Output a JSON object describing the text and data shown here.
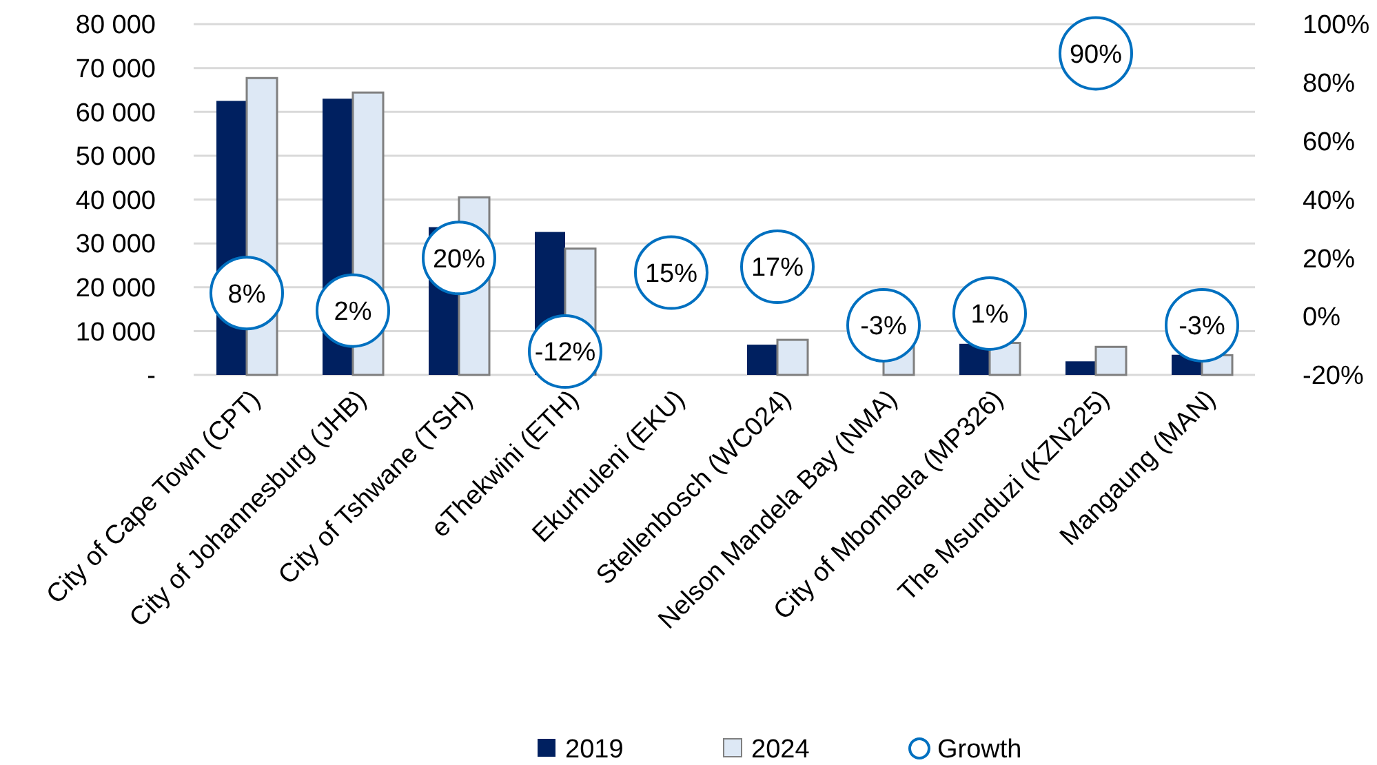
{
  "chart_data": {
    "type": "bar",
    "categories": [
      "City of Cape Town (CPT)",
      "City of Johannesburg (JHB)",
      "City of Tshwane (TSH)",
      "eThekwini (ETH)",
      "Ekurhuleni (EKU)",
      "Stellenbosch (WC024)",
      "Nelson Mandela Bay (NMA)",
      "City of Mbombela (MP326)",
      "The Msunduzi (KZN225)",
      "Mangaung (MAN)"
    ],
    "series": [
      {
        "name": "2019",
        "color": "#002060",
        "values": [
          62500,
          63000,
          33700,
          32600,
          null,
          6900,
          null,
          7100,
          3100,
          4600
        ]
      },
      {
        "name": "2024",
        "color": "#dde8f5",
        "values": [
          67700,
          64400,
          40500,
          28800,
          null,
          8000,
          7800,
          7300,
          6400,
          4500
        ]
      },
      {
        "name": "Growth",
        "type": "scatter",
        "axis": "y2",
        "color": "#0070c0",
        "marker": "circle",
        "values": [
          8,
          2,
          20,
          -12,
          15,
          17,
          -3,
          1,
          90,
          -3
        ],
        "value_labels": [
          "8%",
          "2%",
          "20%",
          "-12%",
          "15%",
          "17%",
          "-3%",
          "1%",
          "90%",
          "-3%"
        ]
      }
    ],
    "ylim": [
      0,
      80000
    ],
    "yticks": [
      {
        "value": 0,
        "label": "-"
      },
      {
        "value": 10000,
        "label": "10 000"
      },
      {
        "value": 20000,
        "label": "20 000"
      },
      {
        "value": 30000,
        "label": "30 000"
      },
      {
        "value": 40000,
        "label": "40 000"
      },
      {
        "value": 50000,
        "label": "50 000"
      },
      {
        "value": 60000,
        "label": "60 000"
      },
      {
        "value": 70000,
        "label": "70 000"
      },
      {
        "value": 80000,
        "label": "80 000"
      }
    ],
    "y2lim": [
      -20,
      100
    ],
    "y2ticks": [
      {
        "value": -20,
        "label": "-20%"
      },
      {
        "value": 0,
        "label": "0%"
      },
      {
        "value": 20,
        "label": "20%"
      },
      {
        "value": 40,
        "label": "40%"
      },
      {
        "value": 60,
        "label": "60%"
      },
      {
        "value": 80,
        "label": "80%"
      },
      {
        "value": 100,
        "label": "100%"
      }
    ],
    "grid": "y",
    "legend": "bottom"
  }
}
